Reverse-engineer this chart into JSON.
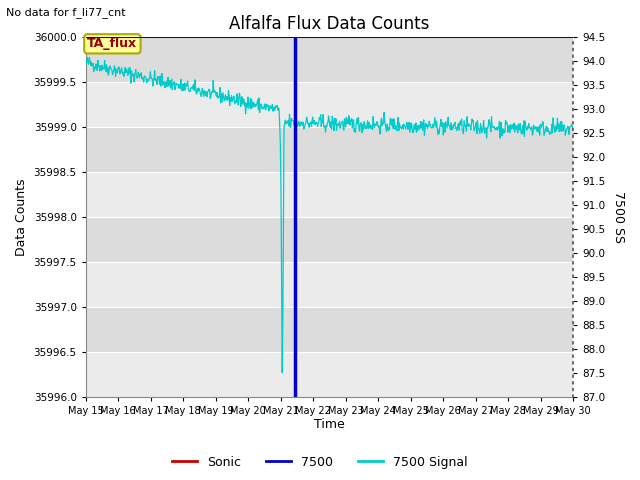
{
  "title": "Alfalfa Flux Data Counts",
  "subtitle": "No data for f_li77_cnt",
  "xlabel": "Time",
  "ylabel": "Data Counts",
  "ylabel_right": "7500 SS",
  "annotation_box": "TA_flux",
  "ylim_left": [
    35996.0,
    36000.0
  ],
  "ylim_right": [
    87.0,
    94.5
  ],
  "figsize": [
    6.4,
    4.8
  ],
  "dpi": 100,
  "fig_bg": "#ffffff",
  "plot_bg_light": "#ebebeb",
  "plot_bg_dark": "#dcdcdc",
  "grid_color": "#ffffff",
  "sonic_color": "#cc0000",
  "line_7500_color": "#0000cc",
  "signal_color": "#00cccc",
  "vline_x_blue": 21.45,
  "hline_y": 36000.0,
  "signal_seed": 42,
  "left_yticks": [
    35996.0,
    35996.5,
    35997.0,
    35997.5,
    35998.0,
    35998.5,
    35999.0,
    35999.5,
    36000.0
  ],
  "right_yticks": [
    87.0,
    87.5,
    88.0,
    88.5,
    89.0,
    89.5,
    90.0,
    90.5,
    91.0,
    91.5,
    92.0,
    92.5,
    93.0,
    93.5,
    94.0,
    94.5
  ],
  "xtick_days": [
    15,
    16,
    17,
    18,
    19,
    20,
    21,
    22,
    23,
    24,
    25,
    26,
    27,
    28,
    29,
    30
  ]
}
